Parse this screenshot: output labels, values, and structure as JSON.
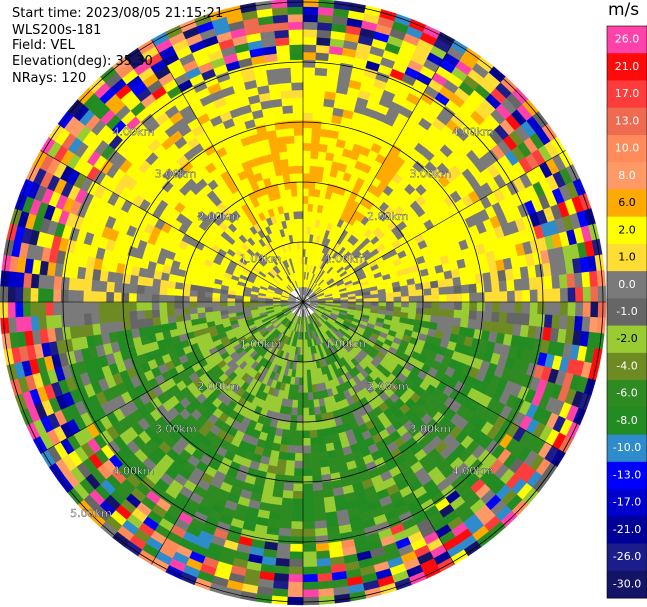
{
  "chart_data": {
    "type": "heatmap",
    "subtype": "ppi_radar_velocity",
    "header": {
      "start_time": "Start time: 2023/08/05 21:15:21",
      "instrument": "WLS200s-181",
      "field": "Field: VEL",
      "elevation": "Elevation(deg): 35.30",
      "nrays": "NRays: 120"
    },
    "n_rays": 120,
    "n_gates": 40,
    "max_range_km": 5.7,
    "range_rings_km": [
      1,
      2,
      3,
      4,
      5
    ],
    "ring_labels": [
      "1.00km",
      "2.00km",
      "3.00km",
      "4.00km",
      "5.00km"
    ],
    "spoke_angles_deg": [
      0,
      30,
      60,
      90,
      120,
      150
    ],
    "colorbar": {
      "title": "m/s",
      "vmin": -30,
      "vmax": 30,
      "ticks": [
        "26.0",
        "21.0",
        "17.0",
        "13.0",
        "10.0",
        "8.0",
        "6.0",
        "2.0",
        "1.0",
        "0.0",
        "-1.0",
        "-2.0",
        "-4.0",
        "-6.0",
        "-8.0",
        "-10.0",
        "-13.0",
        "-17.0",
        "-21.0",
        "-26.0",
        "-30.0"
      ],
      "colors": [
        "#ff42aa",
        "#ff0a0a",
        "#ff3c3c",
        "#f06a50",
        "#ff8a5a",
        "#ff9966",
        "#ffaa00",
        "#ffff00",
        "#ffdd33",
        "#7a7a7a",
        "#666666",
        "#99cc33",
        "#6e8b23",
        "#2e8b22",
        "#228b22",
        "#2e8bcc",
        "#0000ff",
        "#0000cc",
        "#000099",
        "#1c1c8a",
        "#141466"
      ]
    },
    "pattern_description": "Velocity folding: positive (yellow/orange) toward north half, negative (green) toward south half, noisy aliased rings beyond 4 km"
  }
}
